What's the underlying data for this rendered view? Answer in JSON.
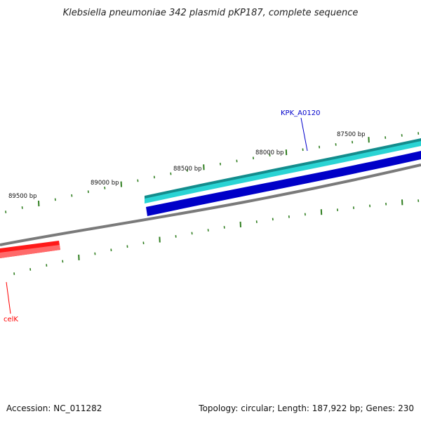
{
  "title": "Klebsiella pneumoniae 342 plasmid pKP187, complete sequence",
  "footer": {
    "accession": "Accession: NC_011282",
    "summary": "Topology: circular; Length: 187,922 bp; Genes: 230"
  },
  "colors": {
    "backbone": "#808080",
    "tick_major": "#2e7d1e",
    "tick_minor": "#2e7d1e",
    "forward_gene_outer": "#138c8c",
    "forward_gene_inner": "#2ad4d4",
    "reverse_gene_outer": "#0000a8",
    "reverse_gene_inner": "#1a1aff",
    "celK_gene": "#ff1a1a",
    "celK_label": "#ff0000",
    "kpk_label": "#0000cc"
  },
  "scale": {
    "labels": [
      "87500 bp",
      "88000 bp",
      "88500 bp",
      "89000 bp",
      "89500 bp"
    ]
  },
  "genes": {
    "kpk": {
      "name": "KPK_A0120",
      "strand": "forward+reverse"
    },
    "celk": {
      "name": "celK",
      "strand": "reverse"
    }
  }
}
